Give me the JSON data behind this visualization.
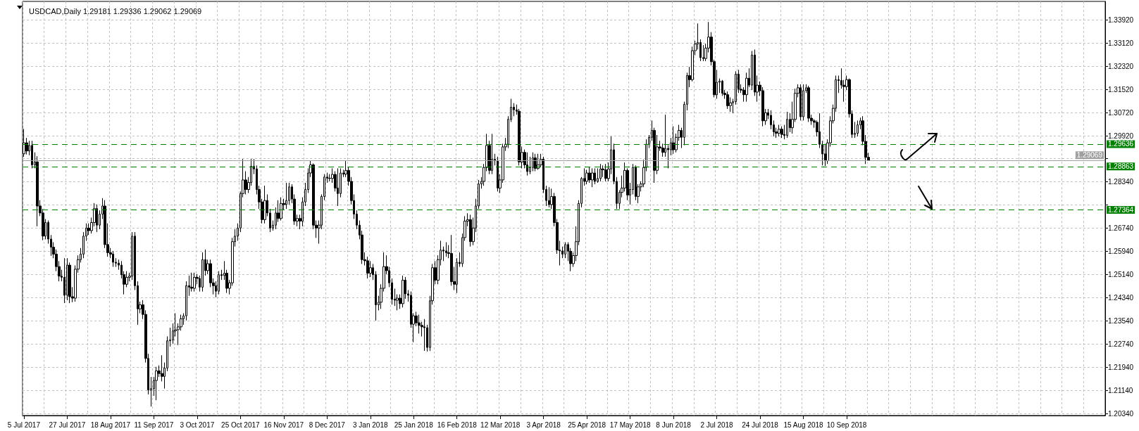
{
  "chart_data": {
    "type": "candlestick",
    "title": "USDCAD,Daily 1.29181 1.29336 1.29062 1.29069",
    "categories": [
      "5 Jul 2017",
      null,
      null,
      null,
      null,
      null,
      null,
      null,
      null,
      null,
      null,
      null,
      null,
      null,
      null,
      null,
      "27 Jul 2017",
      null,
      null,
      null,
      null,
      null,
      null,
      null,
      null,
      null,
      null,
      null,
      null,
      null,
      null,
      null,
      "18 Aug 2017",
      null,
      null,
      null,
      null,
      null,
      null,
      null,
      null,
      null,
      null,
      null,
      null,
      null,
      null,
      null,
      "11 Sep 2017",
      null,
      null,
      null,
      null,
      null,
      null,
      null,
      null,
      null,
      null,
      null,
      null,
      null,
      null,
      null,
      "3 Oct 2017",
      null,
      null,
      null,
      null,
      null,
      null,
      null,
      null,
      null,
      null,
      null,
      null,
      null,
      null,
      null,
      "25 Oct 2017",
      null,
      null,
      null,
      null,
      null,
      null,
      null,
      null,
      null,
      null,
      null,
      null,
      null,
      null,
      null,
      "16 Nov 2017",
      null,
      null,
      null,
      null,
      null,
      null,
      null,
      null,
      null,
      null,
      null,
      null,
      null,
      null,
      null,
      "8 Dec 2017",
      null,
      null,
      null,
      null,
      null,
      null,
      null,
      null,
      null,
      null,
      null,
      null,
      null,
      null,
      null,
      "3 Jan 2018",
      null,
      null,
      null,
      null,
      null,
      null,
      null,
      null,
      null,
      null,
      null,
      null,
      null,
      null,
      null,
      "25 Jan 2018",
      null,
      null,
      null,
      null,
      null,
      null,
      null,
      null,
      null,
      null,
      null,
      null,
      null,
      null,
      null,
      "16 Feb 2018",
      null,
      null,
      null,
      null,
      null,
      null,
      null,
      null,
      null,
      null,
      null,
      null,
      null,
      null,
      null,
      "12 Mar 2018",
      null,
      null,
      null,
      null,
      null,
      null,
      null,
      null,
      null,
      null,
      null,
      null,
      null,
      null,
      null,
      "3 Apr 2018",
      null,
      null,
      null,
      null,
      null,
      null,
      null,
      null,
      null,
      null,
      null,
      null,
      null,
      null,
      null,
      "25 Apr 2018",
      null,
      null,
      null,
      null,
      null,
      null,
      null,
      null,
      null,
      null,
      null,
      null,
      null,
      null,
      null,
      "17 May 2018",
      null,
      null,
      null,
      null,
      null,
      null,
      null,
      null,
      null,
      null,
      null,
      null,
      null,
      null,
      null,
      "8 Jun 2018",
      null,
      null,
      null,
      null,
      null,
      null,
      null,
      null,
      null,
      null,
      null,
      null,
      null,
      null,
      null,
      "2 Jul 2018",
      null,
      null,
      null,
      null,
      null,
      null,
      null,
      null,
      null,
      null,
      null,
      null,
      null,
      null,
      null,
      "24 Jul 2018",
      null,
      null,
      null,
      null,
      null,
      null,
      null,
      null,
      null,
      null,
      null,
      null,
      null,
      null,
      null,
      "15 Aug 2018",
      null,
      null,
      null,
      null,
      null,
      null,
      null,
      null,
      null,
      null,
      null,
      null,
      null,
      null,
      null,
      "10 Sep 2018",
      null,
      null,
      null,
      null,
      null,
      null,
      null,
      null,
      null,
      null,
      null,
      null,
      null,
      null,
      null,
      null,
      null,
      null,
      null,
      null,
      null,
      null,
      null,
      null,
      null,
      null,
      null,
      null,
      null,
      null,
      null,
      null,
      null,
      null,
      null,
      null,
      null,
      null,
      null,
      null,
      null,
      null,
      null,
      null,
      null,
      null,
      null,
      null,
      null,
      null,
      null,
      null,
      null,
      null,
      null,
      null,
      null,
      null,
      null,
      null,
      null,
      null,
      null,
      null,
      null,
      null,
      null,
      null,
      null,
      null,
      null,
      null,
      null,
      null,
      null,
      null,
      null,
      null,
      null,
      null,
      null,
      null,
      null,
      null,
      null,
      null,
      null,
      null,
      null,
      null,
      null,
      null,
      null,
      null,
      null
    ],
    "ohlc": [
      [
        1.293,
        1.3016,
        1.292,
        1.2968
      ],
      [
        1.2968,
        1.2985,
        1.2928,
        1.294
      ],
      [
        1.294,
        1.2975,
        1.2925,
        1.2959
      ],
      [
        1.2959,
        1.2975,
        1.288,
        1.2892
      ],
      [
        1.2892,
        1.2935,
        1.288,
        1.2902
      ],
      [
        1.2902,
        1.2922,
        1.268,
        1.275
      ],
      [
        1.275,
        1.277,
        1.2715,
        1.2726
      ],
      [
        1.2726,
        1.274,
        1.2632,
        1.2646
      ],
      [
        1.2646,
        1.2705,
        1.2635,
        1.2693
      ],
      [
        1.2693,
        1.27,
        1.262,
        1.2636
      ],
      [
        1.2636,
        1.265,
        1.2578,
        1.2608
      ],
      [
        1.2608,
        1.2625,
        1.257,
        1.2584
      ],
      [
        1.2584,
        1.26,
        1.2525,
        1.2541
      ],
      [
        1.2541,
        1.256,
        1.249,
        1.2508
      ],
      [
        1.2508,
        1.253,
        1.249,
        1.2504
      ],
      [
        1.2504,
        1.257,
        1.2415,
        1.2442
      ],
      [
        1.2442,
        1.257,
        1.2425,
        1.2546
      ],
      [
        1.2546,
        1.2555,
        1.2415,
        1.2437
      ],
      [
        1.2437,
        1.247,
        1.2418,
        1.2432
      ],
      [
        1.2432,
        1.2545,
        1.242,
        1.2532
      ],
      [
        1.2532,
        1.258,
        1.252,
        1.2565
      ],
      [
        1.2565,
        1.2605,
        1.2555,
        1.2584
      ],
      [
        1.2584,
        1.266,
        1.257,
        1.2646
      ],
      [
        1.2646,
        1.269,
        1.263,
        1.2674
      ],
      [
        1.2674,
        1.269,
        1.265,
        1.2665
      ],
      [
        1.2665,
        1.271,
        1.2655,
        1.2693
      ],
      [
        1.2693,
        1.276,
        1.268,
        1.2741
      ],
      [
        1.2741,
        1.2755,
        1.266,
        1.2684
      ],
      [
        1.2684,
        1.2735,
        1.267,
        1.2722
      ],
      [
        1.2722,
        1.2777,
        1.2705,
        1.275
      ],
      [
        1.275,
        1.277,
        1.2605,
        1.2617
      ],
      [
        1.2617,
        1.269,
        1.2575,
        1.2589
      ],
      [
        1.2589,
        1.2605,
        1.257,
        1.2584
      ],
      [
        1.2584,
        1.2595,
        1.254,
        1.2556
      ],
      [
        1.2556,
        1.257,
        1.254,
        1.2553
      ],
      [
        1.2553,
        1.2565,
        1.253,
        1.2546
      ],
      [
        1.2546,
        1.256,
        1.25,
        1.2513
      ],
      [
        1.2513,
        1.2525,
        1.2445,
        1.248
      ],
      [
        1.248,
        1.2525,
        1.247,
        1.2504
      ],
      [
        1.2504,
        1.252,
        1.249,
        1.2508
      ],
      [
        1.2508,
        1.266,
        1.2495,
        1.2646
      ],
      [
        1.2646,
        1.266,
        1.246,
        1.2475
      ],
      [
        1.2475,
        1.249,
        1.234,
        1.2395
      ],
      [
        1.2395,
        1.242,
        1.238,
        1.2409
      ],
      [
        1.2409,
        1.2425,
        1.236,
        1.2376
      ],
      [
        1.2376,
        1.239,
        1.221,
        1.2224
      ],
      [
        1.2224,
        1.224,
        1.21,
        1.2115
      ],
      [
        1.2115,
        1.216,
        1.2058,
        1.212
      ],
      [
        1.212,
        1.216,
        1.2095,
        1.2148
      ],
      [
        1.2148,
        1.2195,
        1.208,
        1.2181
      ],
      [
        1.2181,
        1.22,
        1.216,
        1.2172
      ],
      [
        1.2172,
        1.2235,
        1.2145,
        1.2162
      ],
      [
        1.2162,
        1.221,
        1.212,
        1.2191
      ],
      [
        1.2191,
        1.23,
        1.218,
        1.2285
      ],
      [
        1.2285,
        1.233,
        1.2265,
        1.2288
      ],
      [
        1.2288,
        1.2345,
        1.2275,
        1.2319
      ],
      [
        1.2319,
        1.238,
        1.23,
        1.2323
      ],
      [
        1.2323,
        1.2345,
        1.227,
        1.2333
      ],
      [
        1.2333,
        1.2375,
        1.232,
        1.2361
      ],
      [
        1.2361,
        1.238,
        1.234,
        1.2371
      ],
      [
        1.2371,
        1.249,
        1.2355,
        1.2475
      ],
      [
        1.2475,
        1.251,
        1.244,
        1.247
      ],
      [
        1.247,
        1.252,
        1.2455,
        1.2466
      ],
      [
        1.2466,
        1.252,
        1.2455,
        1.2504
      ],
      [
        1.2504,
        1.2515,
        1.248,
        1.25
      ],
      [
        1.25,
        1.251,
        1.2455,
        1.247
      ],
      [
        1.247,
        1.259,
        1.2455,
        1.2565
      ],
      [
        1.2565,
        1.26,
        1.251,
        1.2527
      ],
      [
        1.2527,
        1.2565,
        1.2515,
        1.2551
      ],
      [
        1.2551,
        1.2565,
        1.247,
        1.2485
      ],
      [
        1.2485,
        1.25,
        1.2445,
        1.2475
      ],
      [
        1.2475,
        1.249,
        1.2435,
        1.2456
      ],
      [
        1.2456,
        1.2525,
        1.2445,
        1.2513
      ],
      [
        1.2513,
        1.253,
        1.2495,
        1.251
      ],
      [
        1.251,
        1.256,
        1.2495,
        1.2518
      ],
      [
        1.2518,
        1.253,
        1.245,
        1.2466
      ],
      [
        1.2466,
        1.2495,
        1.2445,
        1.2485
      ],
      [
        1.2485,
        1.264,
        1.2475,
        1.2627
      ],
      [
        1.2627,
        1.267,
        1.261,
        1.2646
      ],
      [
        1.2646,
        1.269,
        1.263,
        1.2674
      ],
      [
        1.2674,
        1.28,
        1.266,
        1.2793
      ],
      [
        1.2793,
        1.2912,
        1.278,
        1.284
      ],
      [
        1.284,
        1.287,
        1.279,
        1.2807
      ],
      [
        1.2807,
        1.285,
        1.2795,
        1.2831
      ],
      [
        1.2831,
        1.2912,
        1.282,
        1.2887
      ],
      [
        1.2887,
        1.2912,
        1.286,
        1.2878
      ],
      [
        1.2878,
        1.289,
        1.279,
        1.2807
      ],
      [
        1.2807,
        1.282,
        1.274,
        1.2764
      ],
      [
        1.2764,
        1.2775,
        1.269,
        1.2703
      ],
      [
        1.2703,
        1.282,
        1.269,
        1.2769
      ],
      [
        1.2769,
        1.279,
        1.2715,
        1.2726
      ],
      [
        1.2726,
        1.274,
        1.266,
        1.2674
      ],
      [
        1.2674,
        1.27,
        1.2665,
        1.2684
      ],
      [
        1.2684,
        1.2745,
        1.267,
        1.2726
      ],
      [
        1.2726,
        1.277,
        1.2695,
        1.2707
      ],
      [
        1.2707,
        1.278,
        1.27,
        1.2759
      ],
      [
        1.2759,
        1.2775,
        1.2735,
        1.2755
      ],
      [
        1.2755,
        1.283,
        1.274,
        1.2769
      ],
      [
        1.2769,
        1.283,
        1.2755,
        1.2816
      ],
      [
        1.2816,
        1.2825,
        1.276,
        1.2774
      ],
      [
        1.2774,
        1.279,
        1.2685,
        1.2698
      ],
      [
        1.2698,
        1.272,
        1.268,
        1.2707
      ],
      [
        1.2707,
        1.272,
        1.267,
        1.2698
      ],
      [
        1.2698,
        1.278,
        1.268,
        1.2764
      ],
      [
        1.2764,
        1.283,
        1.275,
        1.2807
      ],
      [
        1.2807,
        1.288,
        1.2795,
        1.2864
      ],
      [
        1.2864,
        1.2905,
        1.285,
        1.2892
      ],
      [
        1.2892,
        1.2897,
        1.267,
        1.2684
      ],
      [
        1.2684,
        1.27,
        1.264,
        1.2674
      ],
      [
        1.2674,
        1.27,
        1.262,
        1.2684
      ],
      [
        1.2684,
        1.279,
        1.267,
        1.2783
      ],
      [
        1.2783,
        1.286,
        1.277,
        1.285
      ],
      [
        1.285,
        1.2865,
        1.283,
        1.2846
      ],
      [
        1.2846,
        1.286,
        1.2835,
        1.2845
      ],
      [
        1.2845,
        1.288,
        1.283,
        1.2859
      ],
      [
        1.2859,
        1.287,
        1.28,
        1.2812
      ],
      [
        1.2812,
        1.288,
        1.275,
        1.2793
      ],
      [
        1.2793,
        1.288,
        1.278,
        1.2864
      ],
      [
        1.2864,
        1.2875,
        1.285,
        1.286
      ],
      [
        1.286,
        1.2905,
        1.285,
        1.2873
      ],
      [
        1.2873,
        1.2885,
        1.282,
        1.2835
      ],
      [
        1.2835,
        1.285,
        1.2755,
        1.2769
      ],
      [
        1.2769,
        1.279,
        1.2705,
        1.2722
      ],
      [
        1.2722,
        1.2735,
        1.267,
        1.2684
      ],
      [
        1.2684,
        1.27,
        1.2635,
        1.265
      ],
      [
        1.265,
        1.2665,
        1.255,
        1.2565
      ],
      [
        1.2565,
        1.259,
        1.2545,
        1.2561
      ],
      [
        1.2561,
        1.2575,
        1.25,
        1.2518
      ],
      [
        1.2518,
        1.256,
        1.2505,
        1.2537
      ],
      [
        1.2537,
        1.255,
        1.2495,
        1.2513
      ],
      [
        1.2513,
        1.2525,
        1.2355,
        1.2409
      ],
      [
        1.2409,
        1.244,
        1.239,
        1.2418
      ],
      [
        1.2418,
        1.248,
        1.2395,
        1.2466
      ],
      [
        1.2466,
        1.259,
        1.2455,
        1.2541
      ],
      [
        1.2541,
        1.258,
        1.2515,
        1.2527
      ],
      [
        1.2527,
        1.254,
        1.247,
        1.2485
      ],
      [
        1.2485,
        1.25,
        1.241,
        1.2428
      ],
      [
        1.2428,
        1.2465,
        1.2405,
        1.2425
      ],
      [
        1.2425,
        1.2445,
        1.239,
        1.2432
      ],
      [
        1.2432,
        1.2445,
        1.2395,
        1.2413
      ],
      [
        1.2413,
        1.251,
        1.24,
        1.2494
      ],
      [
        1.2494,
        1.2505,
        1.243,
        1.2447
      ],
      [
        1.2447,
        1.246,
        1.242,
        1.2442
      ],
      [
        1.2442,
        1.2455,
        1.233,
        1.2342
      ],
      [
        1.2342,
        1.238,
        1.228,
        1.2371
      ],
      [
        1.2371,
        1.2385,
        1.2335,
        1.2347
      ],
      [
        1.2347,
        1.2375,
        1.231,
        1.2338
      ],
      [
        1.2338,
        1.235,
        1.23,
        1.2333
      ],
      [
        1.2333,
        1.236,
        1.225,
        1.233
      ],
      [
        1.233,
        1.234,
        1.2248,
        1.2262
      ],
      [
        1.2262,
        1.244,
        1.225,
        1.2423
      ],
      [
        1.2423,
        1.255,
        1.241,
        1.2537
      ],
      [
        1.2537,
        1.256,
        1.248,
        1.2494
      ],
      [
        1.2494,
        1.258,
        1.248,
        1.2565
      ],
      [
        1.2565,
        1.263,
        1.2545,
        1.2598
      ],
      [
        1.2598,
        1.261,
        1.256,
        1.2595
      ],
      [
        1.2595,
        1.2625,
        1.2575,
        1.2589
      ],
      [
        1.2589,
        1.2615,
        1.257,
        1.2586
      ],
      [
        1.2586,
        1.265,
        1.2475,
        1.2489
      ],
      [
        1.2489,
        1.254,
        1.246,
        1.248
      ],
      [
        1.248,
        1.257,
        1.245,
        1.2556
      ],
      [
        1.2556,
        1.259,
        1.254,
        1.2551
      ],
      [
        1.2551,
        1.2655,
        1.254,
        1.2641
      ],
      [
        1.2641,
        1.2715,
        1.263,
        1.2698
      ],
      [
        1.2698,
        1.2725,
        1.268,
        1.2703
      ],
      [
        1.2703,
        1.272,
        1.261,
        1.2627
      ],
      [
        1.2627,
        1.271,
        1.2615,
        1.2674
      ],
      [
        1.2674,
        1.2775,
        1.266,
        1.275
      ],
      [
        1.275,
        1.284,
        1.274,
        1.2826
      ],
      [
        1.2826,
        1.285,
        1.281,
        1.2835
      ],
      [
        1.2835,
        1.2895,
        1.282,
        1.2883
      ],
      [
        1.2883,
        1.2999,
        1.287,
        1.2959
      ],
      [
        1.2959,
        1.2975,
        1.286,
        1.2873
      ],
      [
        1.2873,
        1.2999,
        1.286,
        1.2911
      ],
      [
        1.2911,
        1.293,
        1.289,
        1.2906
      ],
      [
        1.2906,
        1.292,
        1.28,
        1.2812
      ],
      [
        1.2812,
        1.286,
        1.2795,
        1.284
      ],
      [
        1.284,
        1.2965,
        1.283,
        1.2954
      ],
      [
        1.2954,
        1.2985,
        1.294,
        1.2963
      ],
      [
        1.2963,
        1.306,
        1.295,
        1.3049
      ],
      [
        1.3049,
        1.312,
        1.304,
        1.3091
      ],
      [
        1.3091,
        1.3105,
        1.306,
        1.3082
      ],
      [
        1.3082,
        1.31,
        1.3065,
        1.3077
      ],
      [
        1.3077,
        1.3085,
        1.289,
        1.2902
      ],
      [
        1.2902,
        1.2955,
        1.288,
        1.2935
      ],
      [
        1.2935,
        1.2945,
        1.288,
        1.2892
      ],
      [
        1.2892,
        1.2935,
        1.2855,
        1.2869
      ],
      [
        1.2869,
        1.292,
        1.286,
        1.2883
      ],
      [
        1.2883,
        1.2935,
        1.287,
        1.2916
      ],
      [
        1.2916,
        1.293,
        1.287,
        1.288
      ],
      [
        1.288,
        1.293,
        1.2875,
        1.2892
      ],
      [
        1.2892,
        1.293,
        1.2885,
        1.2911
      ],
      [
        1.2911,
        1.292,
        1.2795,
        1.2807
      ],
      [
        1.2807,
        1.282,
        1.275,
        1.2769
      ],
      [
        1.2769,
        1.2815,
        1.2745,
        1.2755
      ],
      [
        1.2755,
        1.281,
        1.274,
        1.2783
      ],
      [
        1.2783,
        1.2795,
        1.268,
        1.2693
      ],
      [
        1.2693,
        1.2705,
        1.2585,
        1.2598
      ],
      [
        1.2598,
        1.263,
        1.2545,
        1.2595
      ],
      [
        1.2595,
        1.261,
        1.257,
        1.2584
      ],
      [
        1.2584,
        1.2625,
        1.257,
        1.2617
      ],
      [
        1.2617,
        1.2625,
        1.256,
        1.2594
      ],
      [
        1.2594,
        1.2605,
        1.2525,
        1.2551
      ],
      [
        1.2551,
        1.259,
        1.254,
        1.2579
      ],
      [
        1.2579,
        1.268,
        1.256,
        1.2627
      ],
      [
        1.2627,
        1.277,
        1.2615,
        1.2759
      ],
      [
        1.2759,
        1.285,
        1.2745,
        1.2845
      ],
      [
        1.2845,
        1.288,
        1.282,
        1.2835
      ],
      [
        1.2835,
        1.2875,
        1.2825,
        1.2864
      ],
      [
        1.2864,
        1.2885,
        1.283,
        1.284
      ],
      [
        1.284,
        1.288,
        1.2815,
        1.2864
      ],
      [
        1.2864,
        1.288,
        1.2825,
        1.2835
      ],
      [
        1.2835,
        1.288,
        1.283,
        1.2845
      ],
      [
        1.2845,
        1.2895,
        1.2835,
        1.2878
      ],
      [
        1.2878,
        1.289,
        1.285,
        1.2875
      ],
      [
        1.2875,
        1.2895,
        1.2835,
        1.2845
      ],
      [
        1.2845,
        1.29,
        1.2835,
        1.2878
      ],
      [
        1.2878,
        1.299,
        1.286,
        1.2944
      ],
      [
        1.2944,
        1.2965,
        1.2825,
        1.2835
      ],
      [
        1.2835,
        1.285,
        1.274,
        1.2759
      ],
      [
        1.2759,
        1.2805,
        1.274,
        1.2797
      ],
      [
        1.2797,
        1.2855,
        1.278,
        1.2812
      ],
      [
        1.2812,
        1.29,
        1.28,
        1.2873
      ],
      [
        1.2873,
        1.288,
        1.277,
        1.2788
      ],
      [
        1.2788,
        1.283,
        1.2755,
        1.2807
      ],
      [
        1.2807,
        1.2895,
        1.279,
        1.2883
      ],
      [
        1.2883,
        1.289,
        1.277,
        1.2783
      ],
      [
        1.2783,
        1.2825,
        1.276,
        1.2816
      ],
      [
        1.2816,
        1.2835,
        1.28,
        1.2826
      ],
      [
        1.2826,
        1.291,
        1.2815,
        1.2883
      ],
      [
        1.2883,
        1.298,
        1.287,
        1.2963
      ],
      [
        1.2963,
        1.2995,
        1.295,
        1.2987
      ],
      [
        1.2987,
        1.3045,
        1.2975,
        1.3011
      ],
      [
        1.3011,
        1.302,
        1.283,
        1.2873
      ],
      [
        1.2873,
        1.2995,
        1.286,
        1.2954
      ],
      [
        1.2954,
        1.2975,
        1.294,
        1.295
      ],
      [
        1.295,
        1.2965,
        1.292,
        1.2935
      ],
      [
        1.2935,
        1.3065,
        1.292,
        1.2949
      ],
      [
        1.2949,
        1.296,
        1.288,
        1.2944
      ],
      [
        1.2944,
        1.2985,
        1.2925,
        1.2968
      ],
      [
        1.2968,
        1.3025,
        1.293,
        1.2944
      ],
      [
        1.2944,
        1.3,
        1.2935,
        1.2987
      ],
      [
        1.2987,
        1.303,
        1.2975,
        1.3011
      ],
      [
        1.3011,
        1.302,
        1.295,
        1.2987
      ],
      [
        1.2987,
        1.311,
        1.296,
        1.3101
      ],
      [
        1.3101,
        1.321,
        1.308,
        1.32
      ],
      [
        1.32,
        1.323,
        1.316,
        1.3186
      ],
      [
        1.3186,
        1.33,
        1.318,
        1.3286
      ],
      [
        1.3286,
        1.332,
        1.327,
        1.3309
      ],
      [
        1.3309,
        1.338,
        1.329,
        1.3314
      ],
      [
        1.3314,
        1.3325,
        1.325,
        1.3262
      ],
      [
        1.3262,
        1.3305,
        1.325,
        1.3259
      ],
      [
        1.3259,
        1.331,
        1.325,
        1.3295
      ],
      [
        1.3295,
        1.3385,
        1.328,
        1.3333
      ],
      [
        1.3333,
        1.335,
        1.3235,
        1.3248
      ],
      [
        1.3248,
        1.3255,
        1.3125,
        1.3134
      ],
      [
        1.3134,
        1.322,
        1.312,
        1.3177
      ],
      [
        1.3177,
        1.319,
        1.314,
        1.3181
      ],
      [
        1.3181,
        1.3185,
        1.313,
        1.3139
      ],
      [
        1.3139,
        1.315,
        1.312,
        1.3134
      ],
      [
        1.3134,
        1.3145,
        1.3085,
        1.3096
      ],
      [
        1.3096,
        1.3125,
        1.3075,
        1.3106
      ],
      [
        1.3106,
        1.312,
        1.307,
        1.311
      ],
      [
        1.311,
        1.3215,
        1.31,
        1.3205
      ],
      [
        1.3205,
        1.322,
        1.314,
        1.3153
      ],
      [
        1.3153,
        1.317,
        1.314,
        1.315
      ],
      [
        1.315,
        1.316,
        1.311,
        1.3134
      ],
      [
        1.3134,
        1.321,
        1.311,
        1.3191
      ],
      [
        1.3191,
        1.3225,
        1.316,
        1.3167
      ],
      [
        1.3167,
        1.3285,
        1.315,
        1.3271
      ],
      [
        1.3271,
        1.329,
        1.313,
        1.3143
      ],
      [
        1.3143,
        1.32,
        1.311,
        1.3167
      ],
      [
        1.3167,
        1.318,
        1.313,
        1.3148
      ],
      [
        1.3148,
        1.316,
        1.3025,
        1.3044
      ],
      [
        1.3044,
        1.3085,
        1.303,
        1.3072
      ],
      [
        1.3072,
        1.3085,
        1.305,
        1.3063
      ],
      [
        1.3063,
        1.308,
        1.3015,
        1.303
      ],
      [
        1.303,
        1.3045,
        1.299,
        1.3006
      ],
      [
        1.3006,
        1.302,
        1.2985,
        1.3001
      ],
      [
        1.3001,
        1.303,
        1.299,
        1.3015
      ],
      [
        1.3015,
        1.3025,
        1.2985,
        1.2997
      ],
      [
        1.2997,
        1.303,
        1.298,
        1.2994
      ],
      [
        1.2994,
        1.3075,
        1.2985,
        1.3049
      ],
      [
        1.3049,
        1.307,
        1.3005,
        1.302
      ],
      [
        1.302,
        1.311,
        1.3,
        1.3049
      ],
      [
        1.3049,
        1.3155,
        1.304,
        1.3139
      ],
      [
        1.3139,
        1.317,
        1.3125,
        1.3158
      ],
      [
        1.3158,
        1.317,
        1.3045,
        1.3058
      ],
      [
        1.3058,
        1.317,
        1.3045,
        1.3148
      ],
      [
        1.3148,
        1.317,
        1.314,
        1.3158
      ],
      [
        1.3158,
        1.3165,
        1.304,
        1.3053
      ],
      [
        1.3053,
        1.3065,
        1.303,
        1.3044
      ],
      [
        1.3044,
        1.305,
        1.302,
        1.3039
      ],
      [
        1.3039,
        1.3045,
        1.299,
        1.3006
      ],
      [
        1.3006,
        1.307,
        1.295,
        1.2963
      ],
      [
        1.2963,
        1.2975,
        1.289,
        1.293
      ],
      [
        1.293,
        1.2965,
        1.2888,
        1.2906
      ],
      [
        1.2906,
        1.298,
        1.2895,
        1.2968
      ],
      [
        1.2968,
        1.306,
        1.2955,
        1.3044
      ],
      [
        1.3044,
        1.31,
        1.3035,
        1.3087
      ],
      [
        1.3087,
        1.32,
        1.3075,
        1.3186
      ],
      [
        1.3186,
        1.32,
        1.314,
        1.3183
      ],
      [
        1.3183,
        1.3225,
        1.3155,
        1.3167
      ],
      [
        1.3167,
        1.3185,
        1.311,
        1.3162
      ],
      [
        1.3162,
        1.32,
        1.315,
        1.3186
      ],
      [
        1.3186,
        1.319,
        1.3055,
        1.3068
      ],
      [
        1.3068,
        1.308,
        1.2985,
        1.2997
      ],
      [
        1.2997,
        1.304,
        1.2985,
        1.3001
      ],
      [
        1.3001,
        1.3045,
        1.299,
        1.303
      ],
      [
        1.303,
        1.3055,
        1.3015,
        1.3044
      ],
      [
        1.3044,
        1.306,
        1.296,
        1.2973
      ],
      [
        1.2973,
        1.2995,
        1.2895,
        1.2918
      ],
      [
        1.29181,
        1.29336,
        1.29062,
        1.29069
      ],
      null,
      null,
      null,
      null,
      null,
      null,
      null,
      null,
      null,
      null,
      null,
      null,
      null,
      null,
      null,
      null,
      null,
      null,
      null,
      null,
      null,
      null,
      null,
      null,
      null,
      null,
      null,
      null,
      null,
      null,
      null,
      null,
      null,
      null,
      null,
      null,
      null,
      null,
      null,
      null,
      null,
      null,
      null,
      null,
      null,
      null,
      null,
      null,
      null,
      null,
      null,
      null,
      null,
      null,
      null,
      null,
      null,
      null,
      null,
      null,
      null,
      null,
      null,
      null,
      null,
      null,
      null,
      null,
      null,
      null,
      null,
      null,
      null,
      null,
      null,
      null,
      null,
      null,
      null,
      null,
      null,
      null,
      null,
      null,
      null,
      null,
      null
    ],
    "ylim": [
      1.2027,
      1.3456
    ],
    "yticks": [
      {
        "value": 1.2034,
        "label": "1.20340"
      },
      {
        "value": 1.2114,
        "label": "1.21140"
      },
      {
        "value": 1.2194,
        "label": "1.21940"
      },
      {
        "value": 1.2274,
        "label": "1.22740"
      },
      {
        "value": 1.2354,
        "label": "1.23540"
      },
      {
        "value": 1.2434,
        "label": "1.24340"
      },
      {
        "value": 1.2514,
        "label": "1.25140"
      },
      {
        "value": 1.2594,
        "label": "1.25940"
      },
      {
        "value": 1.2674,
        "label": "1.26740"
      },
      {
        "value": 1.2754,
        "label": null
      },
      {
        "value": 1.2834,
        "label": "1.28340"
      },
      {
        "value": 1.2914,
        "label": null
      },
      {
        "value": 1.2992,
        "label": "1.29920"
      },
      {
        "value": 1.3072,
        "label": "1.30720"
      },
      {
        "value": 1.3152,
        "label": "1.31520"
      },
      {
        "value": 1.3232,
        "label": "1.32320"
      },
      {
        "value": 1.3312,
        "label": "1.33120"
      },
      {
        "value": 1.3392,
        "label": "1.33920"
      }
    ],
    "ref_lines": [
      {
        "axis": "y",
        "value": 1.29636,
        "label": "1.29636",
        "color": "#008000",
        "line_style": "dashed"
      },
      {
        "axis": "y",
        "value": 1.29069,
        "label": "1.29069",
        "color": "#a0a0a0",
        "line_style": "solid"
      },
      {
        "axis": "y",
        "value": 1.28863,
        "label": "1.28863",
        "color": "#008000",
        "line_style": "dashed"
      },
      {
        "axis": "y",
        "value": 1.27364,
        "label": "1.27364",
        "color": "#008000",
        "line_style": "dashed"
      }
    ],
    "grid": true
  }
}
